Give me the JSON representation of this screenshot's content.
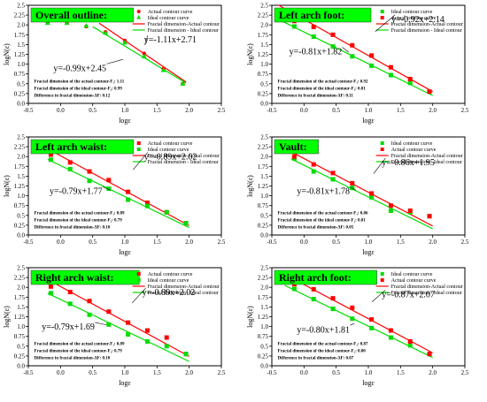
{
  "colors": {
    "actual": "#ff0000",
    "ideal": "#00dd00",
    "title_bg": "#00ff00",
    "axes": "#000000"
  },
  "chart_data": [
    {
      "type": "scatter",
      "title": "Overall outline:",
      "xlabel": "logε",
      "ylabel": "logN(ε)",
      "xlim": [
        -0.5,
        2.5
      ],
      "ylim": [
        0.0,
        2.5
      ],
      "xticks": [
        "-0.5",
        "0.0",
        "0.5",
        "1.0",
        "1.5",
        "2.0",
        "2.5"
      ],
      "yticks": [
        "0.0",
        "0.25",
        "0.5",
        "0.75",
        "1.0",
        "1.25",
        "1.5",
        "1.75",
        "2.0",
        "2.25",
        "2.5"
      ],
      "legend": {
        "position": "top-right",
        "entries": [
          "Actual contour curve",
          "Ideal contour curve",
          "Fractal dimension-Actual contour",
          "Fractal dimension - Ideal contour"
        ]
      },
      "series": [
        {
          "name": "Actual contour curve",
          "marker": "circle",
          "color": "#ff0000",
          "x": [
            -0.2,
            0.1,
            0.4,
            0.7,
            1.0,
            1.3,
            1.6,
            1.9
          ],
          "y": [
            2.07,
            2.05,
            1.96,
            1.82,
            1.6,
            1.27,
            0.88,
            0.5
          ]
        },
        {
          "name": "Ideal contour curve",
          "marker": "triangle",
          "color": "#00dd00",
          "x": [
            -0.2,
            0.1,
            0.4,
            0.7,
            1.0,
            1.3,
            1.6,
            1.9
          ],
          "y": [
            2.05,
            2.05,
            1.98,
            1.8,
            1.55,
            1.2,
            0.85,
            0.5
          ]
        }
      ],
      "fits": [
        {
          "name": "Fractal dimension-Actual contour",
          "color": "#ff0000",
          "slope": -1.11,
          "intercept": 2.71,
          "x_range": [
            0.6,
            1.95
          ]
        },
        {
          "name": "Fractal dimension - Ideal contour",
          "color": "#00dd00",
          "slope": -0.99,
          "intercept": 2.45,
          "x_range": [
            0.5,
            1.95
          ]
        }
      ],
      "equations": [
        "y=-1.11x+2.71",
        "y=-0.99x+2.45"
      ],
      "fd_lines": [
        "Fractal dimension of the actual contour-F₁: 1.11",
        "Fractal dimension of the ideal contour-F₂: 0.99",
        "Difference in fractal dimension-ΔF: 0.12"
      ]
    },
    {
      "type": "scatter",
      "title": "Left arch foot:",
      "xlabel": "logε",
      "ylabel": "logN(ε)",
      "xlim": [
        -0.5,
        2.5
      ],
      "ylim": [
        0.0,
        2.5
      ],
      "xticks": [
        "-0.5",
        "0.0",
        "0.5",
        "1.0",
        "1.5",
        "2.0",
        "2.5"
      ],
      "yticks": [
        "0.0",
        "0.25",
        "0.5",
        "0.75",
        "1.0",
        "1.25",
        "1.5",
        "1.75",
        "2.0",
        "2.25",
        "2.5"
      ],
      "legend": {
        "position": "top-right",
        "entries": [
          "Ideal contour curve",
          "Actual contour curve",
          "Fractal dimension-Actual contour",
          "Fractal dimension - Ideal contour"
        ]
      },
      "series": [
        {
          "name": "Ideal contour curve",
          "marker": "square",
          "color": "#00dd00",
          "x": [
            -0.15,
            0.15,
            0.45,
            0.75,
            1.05,
            1.35,
            1.65,
            1.95
          ],
          "y": [
            1.96,
            1.7,
            1.45,
            1.2,
            0.96,
            0.72,
            0.52,
            0.3
          ]
        },
        {
          "name": "Actual contour curve",
          "marker": "square",
          "color": "#ff0000",
          "x": [
            -0.15,
            0.15,
            0.45,
            0.75,
            1.05,
            1.35,
            1.65,
            1.95
          ],
          "y": [
            2.1,
            1.95,
            1.75,
            1.48,
            1.22,
            0.92,
            0.62,
            0.3
          ]
        }
      ],
      "fits": [
        {
          "name": "Fractal dimension-Actual contour",
          "color": "#ff0000",
          "slope": -0.92,
          "intercept": 2.14,
          "x_range": [
            -0.4,
            2.0
          ]
        },
        {
          "name": "Fractal dimension - Ideal contour",
          "color": "#00dd00",
          "slope": -0.81,
          "intercept": 1.82,
          "x_range": [
            -0.4,
            2.0
          ]
        }
      ],
      "equations": [
        "y=-0.92x+2.14",
        "y=-0.81x+1.82"
      ],
      "fd_lines": [
        "Fractal dimension of the actual contour-F₁: 0.92",
        "Fractal dimension of the ideal contour-F₂: 0.81",
        "Difference in fractal dimension-ΔF: 0.11"
      ]
    },
    {
      "type": "scatter",
      "title": "Left arch waist:",
      "xlabel": "logε",
      "ylabel": "logN(ε)",
      "xlim": [
        -0.5,
        2.5
      ],
      "ylim": [
        0.0,
        2.5
      ],
      "xticks": [
        "-0.5",
        "0.0",
        "0.5",
        "1.0",
        "1.5",
        "2.0",
        "2.5"
      ],
      "yticks": [
        "0.0",
        "0.25",
        "0.5",
        "0.75",
        "1.0",
        "1.25",
        "1.5",
        "1.75",
        "2.0",
        "2.25",
        "2.5"
      ],
      "legend": {
        "position": "top-right",
        "entries": [
          "Actual contour curve",
          "Ideal contour curve",
          "Fractal dimension-Actual contour",
          "Fractal dimension - Ideal contour"
        ]
      },
      "series": [
        {
          "name": "Actual contour curve",
          "marker": "square",
          "color": "#ff0000",
          "x": [
            -0.15,
            0.15,
            0.45,
            0.75,
            1.05,
            1.35,
            1.65,
            1.95
          ],
          "y": [
            2.05,
            1.85,
            1.62,
            1.4,
            1.1,
            0.82,
            0.58,
            0.3
          ]
        },
        {
          "name": "Ideal contour curve",
          "marker": "square",
          "color": "#00dd00",
          "x": [
            -0.15,
            0.15,
            0.45,
            0.75,
            1.05,
            1.35,
            1.65,
            1.95
          ],
          "y": [
            1.92,
            1.68,
            1.38,
            1.18,
            0.9,
            0.74,
            0.58,
            0.3
          ]
        }
      ],
      "fits": [
        {
          "name": "Fractal dimension-Actual contour",
          "color": "#ff0000",
          "slope": -0.89,
          "intercept": 2.02,
          "x_range": [
            -0.2,
            2.0
          ]
        },
        {
          "name": "Fractal dimension - Ideal contour",
          "color": "#00dd00",
          "slope": -0.79,
          "intercept": 1.77,
          "x_range": [
            -0.2,
            2.0
          ]
        }
      ],
      "equations": [
        "y=-0.89x+2.02",
        "y=-0.79x+1.77"
      ],
      "fd_lines": [
        "Fractal dimension of the actual contour-F₁: 0.89",
        "Fractal dimension of the ideal contour-F₂: 0.79",
        "Difference in fractal dimension-ΔF: 0.10"
      ]
    },
    {
      "type": "scatter",
      "title": "Vault:",
      "xlabel": "logε",
      "ylabel": "logN(ε)",
      "xlim": [
        -0.5,
        2.5
      ],
      "ylim": [
        0.0,
        2.5
      ],
      "xticks": [
        "-0.5",
        "0.0",
        "0.5",
        "1.0",
        "1.5",
        "2.0",
        "2.5"
      ],
      "yticks": [
        "0.0",
        "0.25",
        "0.5",
        "0.75",
        "1.0",
        "1.25",
        "1.5",
        "1.75",
        "2.0",
        "2.25",
        "2.5"
      ],
      "legend": {
        "position": "top-right",
        "entries": [
          "Ideal contour curve",
          "Actual contour curve",
          "Fractal dimension-Actual contour",
          "Fractal dimension - Ideal contour"
        ]
      },
      "series": [
        {
          "name": "Ideal contour curve",
          "marker": "square",
          "color": "#00dd00",
          "x": [
            -0.15,
            0.15,
            0.45,
            0.75,
            1.05,
            1.35,
            1.65,
            1.95
          ],
          "y": [
            1.95,
            1.62,
            1.42,
            1.2,
            0.96,
            0.62,
            0.58,
            0.48
          ]
        },
        {
          "name": "Actual contour curve",
          "marker": "square",
          "color": "#ff0000",
          "x": [
            -0.15,
            0.15,
            0.45,
            0.75,
            1.05,
            1.35,
            1.65,
            1.95
          ],
          "y": [
            2.0,
            1.8,
            1.58,
            1.32,
            1.06,
            0.75,
            0.62,
            0.48
          ]
        }
      ],
      "fits": [
        {
          "name": "Fractal dimension-Actual contour",
          "color": "#ff0000",
          "slope": -0.86,
          "intercept": 1.95,
          "x_range": [
            -0.2,
            2.0
          ]
        },
        {
          "name": "Fractal dimension - Ideal contour",
          "color": "#00dd00",
          "slope": -0.81,
          "intercept": 1.78,
          "x_range": [
            -0.2,
            2.0
          ]
        }
      ],
      "equations": [
        "y=-0.86x+1.95",
        "y=-0.81x+1.78"
      ],
      "fd_lines": [
        "Fractal dimension of the actual contour-F₁: 0.86",
        "Fractal dimension of the ideal contour-F₂: 0.81",
        "Difference in fractal dimension-ΔF: 0.05"
      ]
    },
    {
      "type": "scatter",
      "title": "Right arch waist:",
      "xlabel": "logε",
      "ylabel": "logN(ε)",
      "xlim": [
        -0.5,
        2.5
      ],
      "ylim": [
        0.0,
        2.5
      ],
      "xticks": [
        "-0.5",
        "0.0",
        "0.5",
        "1.0",
        "1.5",
        "2.0",
        "2.5"
      ],
      "yticks": [
        "0.0",
        "0.25",
        "0.5",
        "0.75",
        "1.0",
        "1.25",
        "1.5",
        "1.75",
        "2.0",
        "2.25",
        "2.5"
      ],
      "legend": {
        "position": "top-right",
        "entries": [
          "Actual contour curve",
          "Ideal contour curve",
          "Fractal dimension-Actual contour",
          "Fractal dimension - Ideal contour"
        ]
      },
      "series": [
        {
          "name": "Actual contour curve",
          "marker": "square",
          "color": "#ff0000",
          "x": [
            -0.15,
            0.15,
            0.45,
            0.75,
            1.05,
            1.35,
            1.65,
            1.95
          ],
          "y": [
            2.02,
            1.88,
            1.65,
            1.38,
            1.1,
            0.9,
            0.72,
            0.3
          ]
        },
        {
          "name": "Ideal contour curve",
          "marker": "square",
          "color": "#00dd00",
          "x": [
            -0.15,
            0.15,
            0.45,
            0.75,
            1.05,
            1.35,
            1.65,
            1.95
          ],
          "y": [
            1.85,
            1.58,
            1.3,
            1.05,
            0.8,
            0.62,
            0.5,
            0.3
          ]
        }
      ],
      "fits": [
        {
          "name": "Fractal dimension-Actual contour",
          "color": "#ff0000",
          "slope": -0.89,
          "intercept": 2.02,
          "x_range": [
            -0.2,
            2.0
          ]
        },
        {
          "name": "Fractal dimension - Ideal contour",
          "color": "#00dd00",
          "slope": -0.79,
          "intercept": 1.69,
          "x_range": [
            -0.2,
            2.0
          ]
        }
      ],
      "equations": [
        "y=-0.89x+2.02",
        "y=-0.79x+1.69"
      ],
      "fd_lines": [
        "Fractal dimension of the actual contour-F₁: 0.89",
        "Fractal dimension of the ideal contour-F₂: 0.79",
        "Difference in fractal dimension-ΔF: 0.10"
      ]
    },
    {
      "type": "scatter",
      "title": "Right arch foot:",
      "xlabel": "logε",
      "ylabel": "logN(ε)",
      "xlim": [
        -0.5,
        2.5
      ],
      "ylim": [
        0.0,
        2.5
      ],
      "xticks": [
        "-0.5",
        "0.0",
        "0.5",
        "1.0",
        "1.5",
        "2.0",
        "2.5"
      ],
      "yticks": [
        "0.0",
        "0.25",
        "0.5",
        "0.75",
        "1.0",
        "1.25",
        "1.5",
        "1.75",
        "2.0",
        "2.25",
        "2.5"
      ],
      "legend": {
        "position": "top-right",
        "entries": [
          "Ideal contour curve",
          "Actual contour curve",
          "Fractal dimension-Actual contour",
          "Fractal dimension - Ideal contour"
        ]
      },
      "series": [
        {
          "name": "Ideal contour curve",
          "marker": "square",
          "color": "#00dd00",
          "x": [
            -0.15,
            0.15,
            0.45,
            0.75,
            1.05,
            1.35,
            1.65,
            1.95
          ],
          "y": [
            1.96,
            1.7,
            1.45,
            1.2,
            0.96,
            0.72,
            0.52,
            0.3
          ]
        },
        {
          "name": "Actual contour curve",
          "marker": "square",
          "color": "#ff0000",
          "x": [
            -0.15,
            0.15,
            0.45,
            0.75,
            1.05,
            1.35,
            1.65,
            1.95
          ],
          "y": [
            2.08,
            1.95,
            1.72,
            1.48,
            1.18,
            0.9,
            0.62,
            0.3
          ]
        }
      ],
      "fits": [
        {
          "name": "Fractal dimension-Actual contour",
          "color": "#ff0000",
          "slope": -0.87,
          "intercept": 2.07,
          "x_range": [
            -0.3,
            2.0
          ]
        },
        {
          "name": "Fractal dimension - Ideal contour",
          "color": "#00dd00",
          "slope": -0.8,
          "intercept": 1.81,
          "x_range": [
            -0.3,
            2.0
          ]
        }
      ],
      "equations": [
        "y=-0.87x+2.07",
        "y=-0.80x+1.81"
      ],
      "fd_lines": [
        "Fractal dimension of the actual contour-F₁: 0.87",
        "Fractal dimension of the ideal contour-F₂: 0.80",
        "Difference in fractal dimension-ΔF: 0.07"
      ]
    }
  ]
}
